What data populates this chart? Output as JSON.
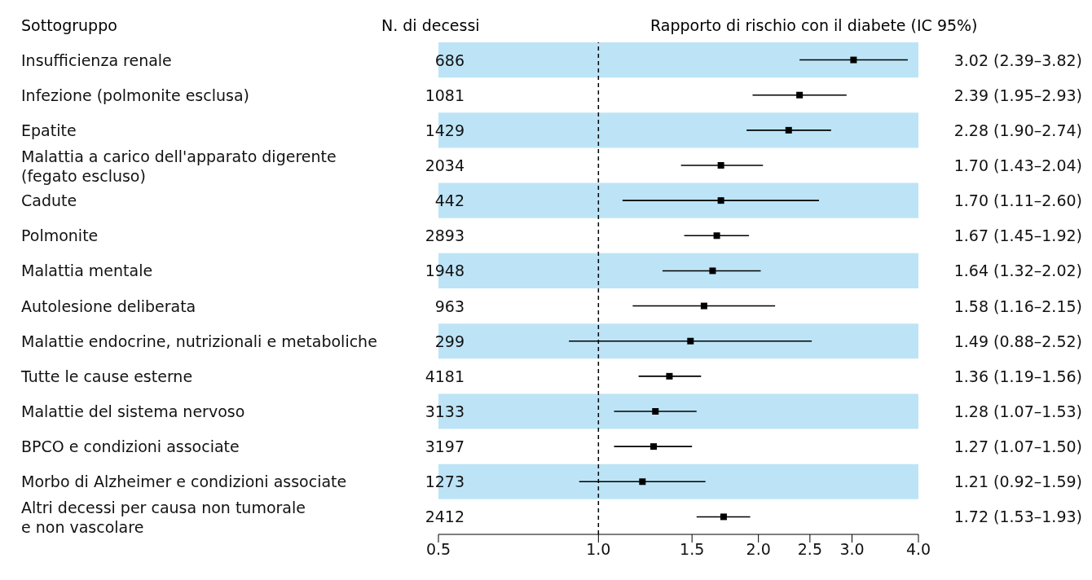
{
  "chart_data": {
    "type": "scatter",
    "xlabel": "Rapporto di rischio con il diabete (IC 95%)",
    "ylabel": "Sottogruppo",
    "categories": [
      "Insufficienza renale",
      "Infezione (polmonite esclusa)",
      "Epatite",
      "Malattia a carico dell'apparato digerente\n(fegato escluso)",
      "Cadute",
      "Polmonite",
      "Malattia mentale",
      "Autolesione deliberata",
      "Malattie endocrine, nutrizionali e metaboliche",
      "Tutte le cause esterne",
      "Malattie del sistema nervoso",
      "BPCO e condizioni associate",
      "Morbo di Alzheimer e condizioni associate",
      "Altri decessi per causa non tumorale\ne non vascolare"
    ],
    "values": [
      3.02,
      2.39,
      2.28,
      1.7,
      1.7,
      1.67,
      1.64,
      1.58,
      1.49,
      1.36,
      1.28,
      1.27,
      1.21,
      1.72
    ],
    "errors": [
      [
        2.39,
        3.82
      ],
      [
        1.95,
        2.93
      ],
      [
        1.9,
        2.74
      ],
      [
        1.43,
        2.04
      ],
      [
        1.11,
        2.6
      ],
      [
        1.45,
        1.92
      ],
      [
        1.32,
        2.02
      ],
      [
        1.16,
        2.15
      ],
      [
        0.88,
        2.52
      ],
      [
        1.19,
        1.56
      ],
      [
        1.07,
        1.53
      ],
      [
        1.07,
        1.5
      ],
      [
        0.92,
        1.59
      ],
      [
        1.53,
        1.93
      ]
    ],
    "value_labels": [
      "3.02 (2.39–3.82)",
      "2.39 (1.95–2.93)",
      "2.28 (1.90–2.74)",
      "1.70 (1.43–2.04)",
      "1.70 (1.11–2.60)",
      "1.67 (1.45–1.92)",
      "1.64 (1.32–2.02)",
      "1.58 (1.16–2.15)",
      "1.49 (0.88–2.52)",
      "1.36 (1.19–1.56)",
      "1.28 (1.07–1.53)",
      "1.27 (1.07–1.50)",
      "1.21 (0.92–1.59)",
      "1.72 (1.53–1.93)"
    ],
    "color": "#000000",
    "marker": "square",
    "orientation": "horizontal",
    "log": "x",
    "grid": false,
    "legend": false,
    "xlim": [
      0.5,
      4
    ],
    "xticks": [
      0.5,
      {
        "value": 1,
        "label": "1.0"
      },
      1.5,
      {
        "value": 2,
        "label": "2.0"
      },
      2.5,
      {
        "value": 3,
        "label": "3.0"
      },
      {
        "value": 4,
        "label": "4.0"
      }
    ],
    "ref_lines": [
      {
        "axis": "x",
        "value": 1,
        "line_style": "dashed",
        "color": "#000000"
      }
    ],
    "bands": [
      {
        "axis": "y",
        "from": "Insufficienza renale",
        "to": "Insufficienza renale",
        "color": "#bde4f6"
      },
      {
        "axis": "y",
        "from": "Epatite",
        "to": "Epatite",
        "color": "#bde4f6"
      },
      {
        "axis": "y",
        "from": "Cadute",
        "to": "Cadute",
        "color": "#bde4f6"
      },
      {
        "axis": "y",
        "from": "Malattia mentale",
        "to": "Malattia mentale",
        "color": "#bde4f6"
      },
      {
        "axis": "y",
        "from": "Malattie endocrine, nutrizionali e metaboliche",
        "to": "Malattie endocrine, nutrizionali e metaboliche",
        "color": "#bde4f6"
      },
      {
        "axis": "y",
        "from": "Malattie del sistema nervoso",
        "to": "Malattie del sistema nervoso",
        "color": "#bde4f6"
      },
      {
        "axis": "y",
        "from": "Morbo di Alzheimer e condizioni associate",
        "to": "Morbo di Alzheimer e condizioni associate",
        "color": "#bde4f6"
      }
    ],
    "annotations": [
      "N. di decessi",
      "686",
      "1081",
      "1429",
      "2034",
      "442",
      "2893",
      "1948",
      "963",
      "299",
      "4181",
      "3133",
      "3197",
      "1273",
      "2412"
    ]
  }
}
